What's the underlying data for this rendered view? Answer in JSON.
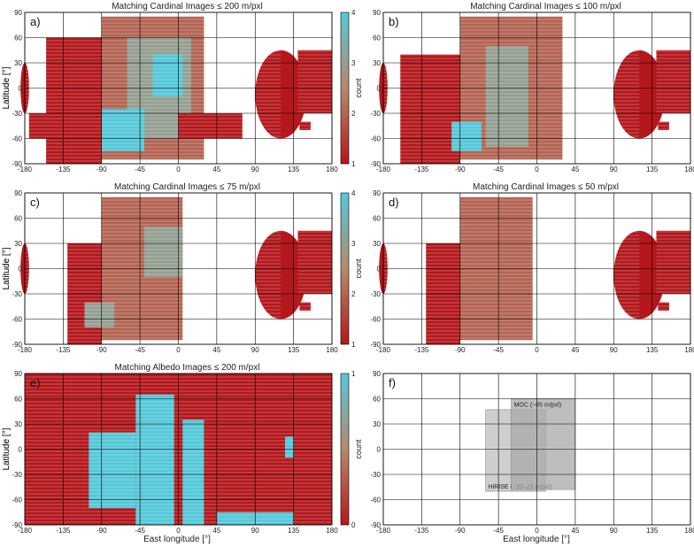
{
  "figure": {
    "xlabel": "East longitude [°]",
    "ylabel": "Latitude [°]",
    "colorbar_label": "count",
    "colors": {
      "low": "#b4181c",
      "mid": "#b48a6e",
      "high": "#55c8d8",
      "grid": "#000000"
    }
  },
  "chart_data": [
    {
      "id": "a",
      "panel_label": "a)",
      "type": "heatmap",
      "title": "Matching Cardinal Images ≤ 200 m/pxl",
      "xlim": [
        -180,
        180
      ],
      "ylim": [
        -90,
        90
      ],
      "xticks": [
        "-180",
        "-135",
        "-90",
        "-45",
        "0",
        "45",
        "90",
        "135",
        "180"
      ],
      "yticks": [
        "90",
        "60",
        "30",
        "0",
        "-30",
        "-60",
        "-90"
      ],
      "colorbar": {
        "min": 1,
        "max": 4,
        "ticks": [
          "1",
          "2",
          "3",
          "4"
        ]
      },
      "coverage": [
        {
          "lon": [
            -180,
            -175
          ],
          "lat": [
            -30,
            30
          ],
          "count": 1,
          "shape": "cap"
        },
        {
          "lon": [
            -155,
            -90
          ],
          "lat": [
            -90,
            60
          ],
          "count": 1
        },
        {
          "lon": [
            -90,
            30
          ],
          "lat": [
            -85,
            85
          ],
          "count": 2
        },
        {
          "lon": [
            -60,
            15
          ],
          "lat": [
            -60,
            60
          ],
          "count": 3
        },
        {
          "lon": [
            -30,
            5
          ],
          "lat": [
            -10,
            40
          ],
          "count": 4
        },
        {
          "lon": [
            -90,
            -40
          ],
          "lat": [
            -75,
            -25
          ],
          "count": 4
        },
        {
          "lon": [
            -175,
            -90
          ],
          "lat": [
            -60,
            -30
          ],
          "count": 1
        },
        {
          "lon": [
            0,
            75
          ],
          "lat": [
            -60,
            -30
          ],
          "count": 1
        },
        {
          "lon": [
            90,
            120
          ],
          "lat": [
            -60,
            45
          ],
          "count": 1,
          "shape": "half-disk"
        },
        {
          "lon": [
            140,
            180
          ],
          "lat": [
            -30,
            45
          ],
          "count": 1
        },
        {
          "lon": [
            142,
            155
          ],
          "lat": [
            -50,
            -40
          ],
          "count": 1
        }
      ]
    },
    {
      "id": "b",
      "panel_label": "b)",
      "type": "heatmap",
      "title": "Matching Cardinal Images ≤ 100 m/pxl",
      "xlim": [
        -180,
        180
      ],
      "ylim": [
        -90,
        90
      ],
      "xticks": [
        "-180",
        "-135",
        "-90",
        "-45",
        "0",
        "45",
        "90",
        "135",
        "180"
      ],
      "yticks": [
        "90",
        "60",
        "30",
        "0",
        "-30",
        "-60",
        "-90"
      ],
      "colorbar": {
        "min": 1,
        "max": 4,
        "ticks": []
      },
      "coverage": [
        {
          "lon": [
            -180,
            -175
          ],
          "lat": [
            -30,
            30
          ],
          "count": 1,
          "shape": "cap"
        },
        {
          "lon": [
            -160,
            -90
          ],
          "lat": [
            -90,
            40
          ],
          "count": 1
        },
        {
          "lon": [
            -90,
            30
          ],
          "lat": [
            -85,
            85
          ],
          "count": 2
        },
        {
          "lon": [
            -60,
            -10
          ],
          "lat": [
            -70,
            50
          ],
          "count": 3
        },
        {
          "lon": [
            -100,
            -65
          ],
          "lat": [
            -75,
            -40
          ],
          "count": 4
        },
        {
          "lon": [
            90,
            120
          ],
          "lat": [
            -60,
            45
          ],
          "count": 1,
          "shape": "half-disk"
        },
        {
          "lon": [
            140,
            180
          ],
          "lat": [
            -30,
            45
          ],
          "count": 1
        },
        {
          "lon": [
            142,
            155
          ],
          "lat": [
            -50,
            -40
          ],
          "count": 1
        }
      ]
    },
    {
      "id": "c",
      "panel_label": "c)",
      "type": "heatmap",
      "title": "Matching Cardinal Images ≤ 75 m/pxl",
      "xlim": [
        -180,
        180
      ],
      "ylim": [
        -90,
        90
      ],
      "xticks": [
        "-180",
        "-135",
        "-90",
        "-45",
        "0",
        "45",
        "90",
        "135",
        "180"
      ],
      "yticks": [
        "90",
        "60",
        "30",
        "0",
        "-30",
        "-60",
        "-90"
      ],
      "colorbar": {
        "min": 1,
        "max": 4,
        "ticks": [
          "1",
          "2",
          "3",
          "4"
        ]
      },
      "coverage": [
        {
          "lon": [
            -180,
            -175
          ],
          "lat": [
            -30,
            30
          ],
          "count": 1,
          "shape": "cap"
        },
        {
          "lon": [
            -130,
            -90
          ],
          "lat": [
            -90,
            30
          ],
          "count": 1
        },
        {
          "lon": [
            -90,
            5
          ],
          "lat": [
            -85,
            85
          ],
          "count": 2
        },
        {
          "lon": [
            -40,
            5
          ],
          "lat": [
            -10,
            50
          ],
          "count": 3
        },
        {
          "lon": [
            -110,
            -75
          ],
          "lat": [
            -70,
            -40
          ],
          "count": 3
        },
        {
          "lon": [
            90,
            120
          ],
          "lat": [
            -60,
            45
          ],
          "count": 1,
          "shape": "half-disk"
        },
        {
          "lon": [
            140,
            180
          ],
          "lat": [
            -30,
            45
          ],
          "count": 1
        },
        {
          "lon": [
            142,
            155
          ],
          "lat": [
            -50,
            -40
          ],
          "count": 1
        }
      ]
    },
    {
      "id": "d",
      "panel_label": "d)",
      "type": "heatmap",
      "title": "Matching Cardinal Images ≤ 50 m/pxl",
      "xlim": [
        -180,
        180
      ],
      "ylim": [
        -90,
        90
      ],
      "xticks": [
        "-180",
        "-135",
        "-90",
        "-45",
        "0",
        "45",
        "90",
        "135",
        "180"
      ],
      "yticks": [
        "90",
        "60",
        "30",
        "0",
        "-30",
        "-60",
        "-90"
      ],
      "colorbar": {
        "min": 1,
        "max": 4,
        "ticks": []
      },
      "coverage": [
        {
          "lon": [
            -180,
            -175
          ],
          "lat": [
            -30,
            30
          ],
          "count": 1,
          "shape": "cap"
        },
        {
          "lon": [
            -130,
            -90
          ],
          "lat": [
            -90,
            30
          ],
          "count": 1
        },
        {
          "lon": [
            -90,
            -5
          ],
          "lat": [
            -85,
            85
          ],
          "count": 2
        },
        {
          "lon": [
            -70,
            -10
          ],
          "lat": [
            -50,
            60
          ],
          "count": 2
        },
        {
          "lon": [
            90,
            120
          ],
          "lat": [
            -60,
            45
          ],
          "count": 1,
          "shape": "half-disk"
        },
        {
          "lon": [
            140,
            180
          ],
          "lat": [
            -30,
            45
          ],
          "count": 1
        },
        {
          "lon": [
            142,
            155
          ],
          "lat": [
            -50,
            -40
          ],
          "count": 1
        }
      ]
    },
    {
      "id": "e",
      "panel_label": "e)",
      "type": "heatmap",
      "title": "Matching Albedo Images ≤ 200 m/pxl",
      "xlim": [
        -180,
        180
      ],
      "ylim": [
        -90,
        90
      ],
      "xticks": [
        "-180",
        "-135",
        "-90",
        "-45",
        "0",
        "45",
        "90",
        "135",
        "180"
      ],
      "yticks": [
        "90",
        "60",
        "30",
        "0",
        "-30",
        "-60",
        "-90"
      ],
      "colorbar": {
        "min": 0,
        "max": 1,
        "ticks": [
          "0",
          "1"
        ]
      },
      "coverage": [
        {
          "lon": [
            -180,
            180
          ],
          "lat": [
            -90,
            90
          ],
          "count": 0
        },
        {
          "lon": [
            -105,
            -50
          ],
          "lat": [
            -70,
            20
          ],
          "count": 1
        },
        {
          "lon": [
            -50,
            -5
          ],
          "lat": [
            -90,
            65
          ],
          "count": 1
        },
        {
          "lon": [
            5,
            30
          ],
          "lat": [
            -90,
            35
          ],
          "count": 1
        },
        {
          "lon": [
            45,
            135
          ],
          "lat": [
            -90,
            -75
          ],
          "count": 1
        },
        {
          "lon": [
            125,
            135
          ],
          "lat": [
            -10,
            15
          ],
          "count": 1
        }
      ]
    },
    {
      "id": "f",
      "panel_label": "f)",
      "type": "diagram",
      "title": "",
      "xlim": [
        -180,
        180
      ],
      "ylim": [
        -90,
        90
      ],
      "xticks": [
        "-180",
        "-135",
        "-90",
        "-45",
        "0",
        "45",
        "90",
        "135",
        "180"
      ],
      "yticks": [
        "90",
        "60",
        "30",
        "0",
        "-30",
        "-60",
        "-90"
      ],
      "rects": [
        {
          "label": "HiRISE (~20–23 m/pxl)",
          "lon": [
            -60,
            10
          ],
          "lat": [
            -50,
            47
          ],
          "color": "#bdbdbd"
        },
        {
          "label": "MOC (~85 m/pxl)",
          "lon": [
            -30,
            45
          ],
          "lat": [
            -48,
            60
          ],
          "color": "#a8a8a8"
        }
      ]
    }
  ]
}
